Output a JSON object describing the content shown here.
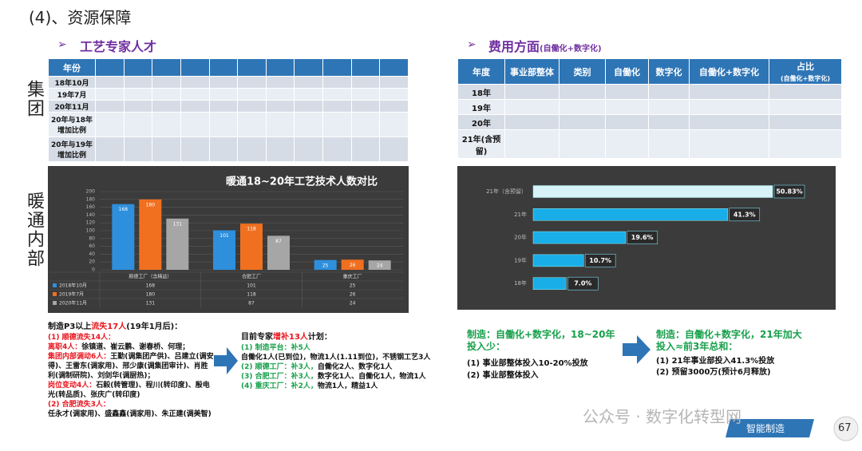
{
  "header": {
    "title": "(4)、资源保障"
  },
  "left": {
    "heading": "工艺专家人才",
    "group_label": "集团",
    "hvac_label": "暖通内部",
    "table": {
      "header": "年份",
      "rows": [
        "18年10月",
        "19年7月",
        "20年11月",
        "20年与18年增加比例",
        "20年与19年增加比例"
      ]
    },
    "chart": {
      "type": "bar",
      "title": "暖通18~20年工艺技术人数对比",
      "categories": [
        "顺德工厂（含精益）",
        "合肥工厂",
        "重庆工厂"
      ],
      "series": [
        {
          "name": "2018年10月",
          "color": "#2e8fdc",
          "values": [
            168,
            101,
            25
          ]
        },
        {
          "name": "2019年7月",
          "color": "#f07020",
          "values": [
            180,
            118,
            26
          ]
        },
        {
          "name": "2020年11月",
          "color": "#a6a6a6",
          "values": [
            131,
            87,
            24
          ]
        }
      ],
      "ylim": [
        0,
        200
      ],
      "yticks": [
        0,
        20,
        40,
        60,
        80,
        100,
        120,
        140,
        160,
        180,
        200
      ],
      "grid": true
    },
    "loss": {
      "title_parts": [
        "制造P3以上",
        "流失17人",
        "(19年1月后)："
      ],
      "lines": [
        {
          "label": "(1) 顺德流失14人："
        },
        {
          "label": "离职4人：",
          "text": "徐镇道、崔云鹏、谢春桥、何理；"
        },
        {
          "label": "集团内部调动6人：",
          "text": "王勤(调集团产供)、吕建立(调安得)、王雷东(调家用)、邢少康(调集团审计)、肖胜利(调制研院)、刘剑华(调厨热)；"
        },
        {
          "label": "岗位变动4人：",
          "text": "石毅(转管理)、程川(转印度)、殷电光(转品质)、张庆广(转印度)"
        },
        {
          "label": "(2) 合肥流失3人："
        },
        {
          "text": "任永才(调家用)、盛鑫鑫(调家用)、朱正建(调美智)"
        }
      ]
    },
    "plan": {
      "title_parts": [
        "目前专家",
        "增补13人",
        "计划："
      ],
      "lines": [
        {
          "label": "(1) 制造平台：补5人"
        },
        {
          "text": "自働化1人(已到位)，物流1人(1.11到位)，不锈钢工艺3人"
        },
        {
          "label": "(2) 顺德工厂：补3人，",
          "text": "自働化2人、数字化1人"
        },
        {
          "label": "(3) 合肥工厂：补3人，",
          "text": "数字化1人、自働化1人，物流1人"
        },
        {
          "label": "(4) 重庆工厂：补2人，",
          "text": "物流1人，精益1人"
        }
      ]
    }
  },
  "right": {
    "heading": "费用方面",
    "heading_note": "(自働化+数字化)",
    "table": {
      "columns": [
        "年度",
        "事业部整体",
        "类别",
        "自働化",
        "数字化",
        "自働化+数字化",
        "占比"
      ],
      "column_note": "(自働化+数字化)",
      "rows": [
        "18年",
        "19年",
        "20年",
        "21年(含预留)"
      ]
    },
    "chart": {
      "type": "hbar",
      "categories": [
        "21年（含预留）",
        "21年",
        "20年",
        "19年",
        "18年"
      ],
      "values": [
        50.83,
        41.3,
        19.6,
        10.7,
        7.0
      ],
      "value_labels": [
        "50.83%",
        "41.3%",
        "19.6%",
        "10.7%",
        "7.0%"
      ],
      "colors": [
        "#d7f3f7",
        "#19aee8",
        "#19aee8",
        "#19aee8",
        "#19aee8"
      ]
    },
    "before": {
      "title": "制造：自働化+数字化，18~20年投入少：",
      "lines": [
        "(1) 事业部整体投入10-20%投放",
        "(2) 事业部整体投入"
      ]
    },
    "after": {
      "title": "制造：自働化+数字化，21年加大投入≈前3年总和：",
      "lines": [
        "(1) 21年事业部投入41.3%投放",
        "(2) 预留3000万(预计6月释放)"
      ]
    }
  },
  "footer": {
    "watermark": "公众号 · 数字化转型网",
    "badge": "智能制造",
    "page": "67"
  }
}
